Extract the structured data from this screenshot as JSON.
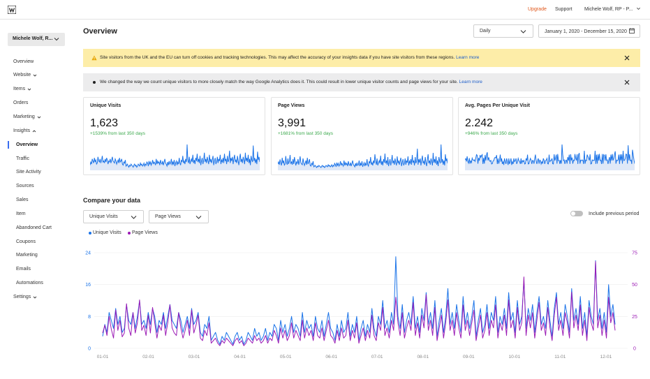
{
  "topbar": {
    "upgrade": "Upgrade",
    "support": "Support",
    "user": "Michele Wolf, RP - P..."
  },
  "sidebar": {
    "site_selector": "Michele Wolf, R...",
    "items": [
      {
        "label": "Overview"
      },
      {
        "label": "Website"
      },
      {
        "label": "Items"
      },
      {
        "label": "Orders"
      },
      {
        "label": "Marketing"
      },
      {
        "label": "Insights"
      },
      {
        "label": "Settings"
      }
    ],
    "sub_items": [
      {
        "label": "Overview"
      },
      {
        "label": "Traffic"
      },
      {
        "label": "Site Activity"
      },
      {
        "label": "Sources"
      },
      {
        "label": "Sales"
      },
      {
        "label": "Item"
      },
      {
        "label": "Abandoned Cart"
      },
      {
        "label": "Coupons"
      },
      {
        "label": "Marketing"
      },
      {
        "label": "Emails"
      },
      {
        "label": "Automations"
      }
    ]
  },
  "header": {
    "title": "Overview",
    "interval": "Daily",
    "date_range": "January 1, 2020 - December 15, 2020"
  },
  "banners": {
    "warning": {
      "text": "Site visitors from the UK and the EU can turn off cookies and tracking technologies. This may affect the accuracy of your insights data if you have site visitors from these regions.",
      "link": "Learn more"
    },
    "info": {
      "text": "We changed the way we count unique visitors to more closely match the way Google Analytics does it. This could result in lower unique visitor counts and page views for your site.",
      "link": "Learn more"
    }
  },
  "stats": [
    {
      "label": "Unique Visits",
      "value": "1,623",
      "delta": "+1539% from last 350 days"
    },
    {
      "label": "Page Views",
      "value": "3,991",
      "delta": "+1681% from last 350 days"
    },
    {
      "label": "Avg. Pages Per Unique Visit",
      "value": "2.242",
      "delta": "+946% from last 350 days"
    }
  ],
  "compare": {
    "title": "Compare your data",
    "metric_left": "Unique Visits",
    "metric_right": "Page Views",
    "include_previous_label": "Include previous period",
    "include_previous": false
  },
  "colors": {
    "accent": "#1a73e8",
    "unique": "#1a73e8",
    "views": "#9b1bb5",
    "upgrade": "#e0561a",
    "delta": "#3aa84b",
    "spark_fill": "#dfe8f7"
  },
  "chart_data": {
    "type": "line",
    "x_ticks": [
      "01-01",
      "02-01",
      "03-01",
      "04-01",
      "05-01",
      "06-01",
      "07-01",
      "08-01",
      "09-01",
      "10-01",
      "11-01",
      "12-01"
    ],
    "y_left_ticks": [
      "0",
      "8",
      "16",
      "24"
    ],
    "y_right_ticks": [
      "0",
      "25",
      "50",
      "75"
    ],
    "ylim_left": [
      0,
      24
    ],
    "ylim_right": [
      0,
      75
    ],
    "series": [
      {
        "name": "Unique Visits",
        "axis": "left",
        "color": "#1a73e8",
        "values": [
          3,
          6,
          4,
          9,
          7,
          5,
          10,
          6,
          8,
          4,
          5,
          11,
          7,
          6,
          9,
          5,
          8,
          12,
          6,
          7,
          5,
          9,
          6,
          10,
          8,
          4,
          7,
          6,
          9,
          5,
          8,
          11,
          7,
          6,
          5,
          9,
          7,
          4,
          6,
          8,
          5,
          10,
          6,
          7,
          9,
          4,
          3,
          6,
          5,
          8,
          2,
          3,
          4,
          2,
          1,
          3,
          2,
          4,
          3,
          2,
          1,
          3,
          4,
          2,
          3,
          1,
          2,
          4,
          3,
          2,
          5,
          3,
          4,
          2,
          3,
          5,
          2,
          4,
          3,
          6,
          5,
          2,
          7,
          4,
          6,
          3,
          5,
          8,
          4,
          6,
          5,
          3,
          9,
          4,
          7,
          5,
          6,
          3,
          8,
          5,
          4,
          7,
          3,
          6,
          9,
          5,
          4,
          2,
          6,
          3,
          7,
          4,
          5,
          9,
          3,
          6,
          4,
          8,
          2,
          5,
          7,
          3,
          6,
          4,
          10,
          5,
          3,
          8,
          6,
          12,
          5,
          7,
          4,
          9,
          6,
          23,
          8,
          5,
          11,
          4,
          7,
          9,
          6,
          13,
          5,
          8,
          4,
          10,
          7,
          14,
          6,
          9,
          5,
          12,
          3,
          7,
          10,
          4,
          8,
          15,
          6,
          9,
          5,
          11,
          7,
          4,
          13,
          6,
          9,
          5,
          8,
          12,
          3,
          7,
          10,
          4,
          6,
          11,
          5,
          9,
          7,
          13,
          4,
          8,
          6,
          10,
          5,
          14,
          7,
          9,
          4,
          12,
          6,
          8,
          17,
          5,
          10,
          7,
          11,
          4,
          9,
          13,
          6,
          8,
          5,
          12,
          7,
          3,
          10,
          14,
          6,
          9,
          5,
          11,
          8,
          4,
          15,
          7,
          10,
          6,
          13,
          5,
          9,
          3,
          12,
          8,
          6,
          22,
          7,
          10,
          5,
          9,
          4,
          16,
          8,
          11,
          6
        ]
      },
      {
        "name": "Page Views",
        "axis": "right",
        "color": "#9b1bb5",
        "values": [
          12,
          18,
          10,
          25,
          15,
          8,
          30,
          14,
          22,
          9,
          12,
          35,
          16,
          10,
          28,
          12,
          20,
          38,
          14,
          18,
          10,
          26,
          12,
          32,
          20,
          8,
          18,
          14,
          26,
          10,
          20,
          34,
          16,
          12,
          10,
          28,
          16,
          8,
          14,
          22,
          10,
          30,
          12,
          18,
          26,
          8,
          6,
          14,
          10,
          20,
          4,
          6,
          8,
          4,
          2,
          6,
          4,
          8,
          6,
          4,
          2,
          6,
          8,
          4,
          6,
          2,
          4,
          8,
          6,
          4,
          10,
          6,
          8,
          4,
          6,
          10,
          4,
          8,
          6,
          14,
          10,
          4,
          16,
          8,
          14,
          6,
          10,
          20,
          8,
          14,
          10,
          6,
          22,
          8,
          16,
          10,
          14,
          6,
          20,
          10,
          8,
          16,
          6,
          14,
          22,
          10,
          8,
          4,
          14,
          6,
          16,
          8,
          10,
          22,
          6,
          14,
          8,
          20,
          4,
          10,
          16,
          6,
          14,
          8,
          26,
          10,
          6,
          20,
          14,
          32,
          10,
          16,
          8,
          22,
          14,
          40,
          20,
          10,
          28,
          8,
          16,
          22,
          14,
          36,
          10,
          20,
          8,
          26,
          16,
          42,
          14,
          22,
          10,
          32,
          6,
          16,
          26,
          8,
          20,
          38,
          14,
          22,
          10,
          28,
          16,
          8,
          34,
          14,
          22,
          10,
          20,
          30,
          6,
          16,
          26,
          8,
          14,
          28,
          10,
          22,
          16,
          34,
          8,
          20,
          14,
          26,
          10,
          38,
          16,
          22,
          8,
          32,
          14,
          20,
          56,
          10,
          26,
          16,
          28,
          8,
          22,
          36,
          14,
          20,
          10,
          32,
          16,
          6,
          26,
          40,
          14,
          22,
          10,
          28,
          20,
          8,
          44,
          16,
          26,
          14,
          34,
          10,
          22,
          6,
          32,
          20,
          14,
          68,
          16,
          26,
          10,
          22,
          8,
          40,
          20,
          28,
          14
        ]
      }
    ]
  }
}
